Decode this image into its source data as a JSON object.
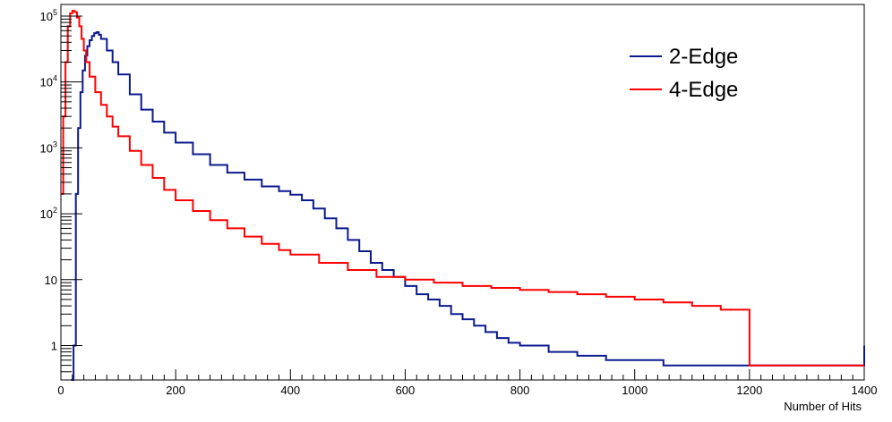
{
  "chart_data": {
    "type": "line",
    "title": "",
    "xlabel": "Number of Hits",
    "ylabel": "",
    "xlim": [
      0,
      1400
    ],
    "ylim": [
      0.3,
      150000
    ],
    "yscale": "log",
    "grid": false,
    "legend_position": "top-right",
    "x_ticks": [
      0,
      200,
      400,
      600,
      800,
      1000,
      1200,
      1400
    ],
    "x_tick_labels": [
      "0",
      "200",
      "400",
      "600",
      "800",
      "1000",
      "1200",
      "1400"
    ],
    "y_ticks": [
      1,
      10,
      100,
      1000,
      10000,
      100000
    ],
    "y_tick_labels": [
      "1",
      "10",
      "10^2",
      "10^3",
      "10^4",
      "10^5"
    ],
    "series": [
      {
        "name": "2-Edge",
        "color": "#0b1a8e",
        "x": [
          18,
          22,
          26,
          30,
          34,
          38,
          42,
          46,
          50,
          54,
          58,
          62,
          66,
          70,
          80,
          90,
          100,
          120,
          140,
          160,
          180,
          200,
          230,
          260,
          290,
          320,
          350,
          380,
          400,
          420,
          440,
          460,
          480,
          500,
          520,
          540,
          560,
          580,
          600,
          620,
          640,
          660,
          680,
          700,
          720,
          740,
          760,
          780,
          800,
          850,
          900,
          950,
          1000,
          1050,
          1100,
          1150,
          1200,
          1260,
          1350,
          1400
        ],
        "y": [
          0.3,
          1,
          200,
          2000,
          7000,
          15000,
          25000,
          35000,
          43000,
          50000,
          55000,
          57000,
          52000,
          45000,
          30000,
          20000,
          13000,
          6500,
          3800,
          2500,
          1700,
          1200,
          800,
          550,
          420,
          330,
          260,
          220,
          195,
          160,
          120,
          85,
          60,
          40,
          27,
          18,
          14,
          11,
          8,
          6,
          5,
          4,
          3,
          2.5,
          2,
          1.6,
          1.3,
          1.1,
          1,
          0.8,
          0.7,
          0.6,
          0.6,
          0.5,
          0.5,
          0.5,
          0.5,
          0.5,
          0.5,
          1
        ]
      },
      {
        "name": "4-Edge",
        "color": "#ff0000",
        "x": [
          0,
          4,
          8,
          12,
          16,
          20,
          24,
          28,
          32,
          36,
          40,
          44,
          50,
          60,
          70,
          80,
          90,
          100,
          120,
          140,
          160,
          180,
          200,
          230,
          260,
          290,
          320,
          350,
          380,
          400,
          450,
          500,
          550,
          600,
          650,
          700,
          750,
          800,
          850,
          900,
          950,
          1000,
          1050,
          1100,
          1150,
          1200,
          1250,
          1300,
          1350,
          1400
        ],
        "y": [
          200,
          3000,
          20000,
          70000,
          110000,
          120000,
          115000,
          95000,
          70000,
          45000,
          30000,
          20000,
          12000,
          7000,
          4500,
          3000,
          2100,
          1500,
          900,
          550,
          350,
          230,
          160,
          110,
          80,
          60,
          45,
          35,
          28,
          24,
          18,
          14,
          11,
          10,
          9,
          8,
          7.5,
          7,
          6.5,
          6,
          5.5,
          5,
          4.5,
          4,
          3.5,
          0.5,
          0.5,
          0.5,
          0.5,
          0.5
        ]
      }
    ]
  }
}
